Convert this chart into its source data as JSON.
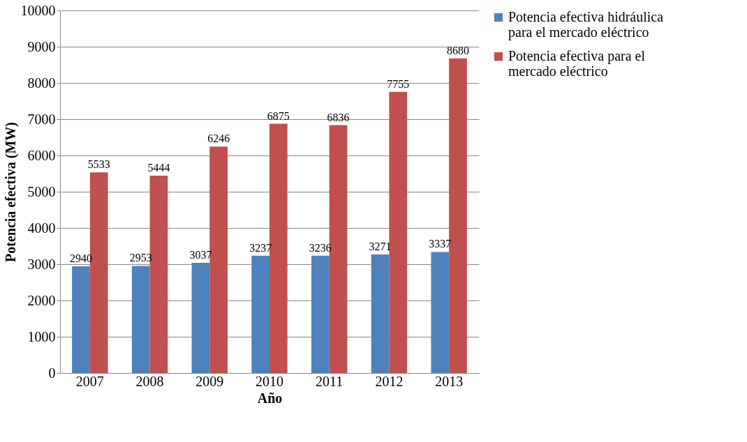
{
  "chart_data": {
    "type": "bar",
    "xlabel": "Año",
    "ylabel": "Potencia efectiva (MW)",
    "categories": [
      "2007",
      "2008",
      "2009",
      "2010",
      "2011",
      "2012",
      "2013"
    ],
    "series": [
      {
        "name": "Potencia efectiva hidráulica para el mercado eléctrico",
        "color": "#4f81bd",
        "values": [
          2940,
          2953,
          3037,
          3237,
          3236,
          3271,
          3337
        ]
      },
      {
        "name": "Potencia efectiva para el mercado eléctrico",
        "color": "#c0504d",
        "values": [
          5533,
          5444,
          6246,
          6875,
          6836,
          7755,
          8680
        ]
      }
    ],
    "ylim": [
      0,
      10000
    ],
    "yticks": [
      0,
      1000,
      2000,
      3000,
      4000,
      5000,
      6000,
      7000,
      8000,
      9000,
      10000
    ],
    "grid": "y",
    "legend": "right",
    "data_labels": true
  }
}
